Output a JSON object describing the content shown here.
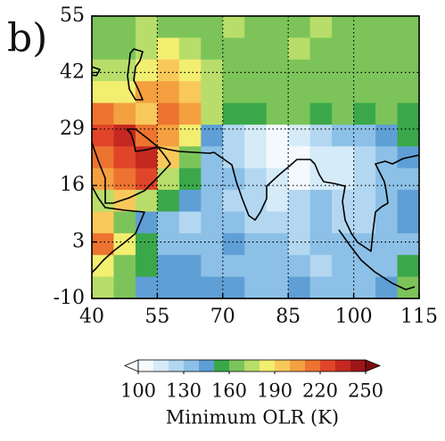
{
  "chart_data": {
    "type": "heatmap",
    "panel_label": "b)",
    "x": [
      40,
      45,
      50,
      55,
      60,
      65,
      70,
      75,
      80,
      85,
      90,
      95,
      100,
      105,
      110
    ],
    "y": [
      55,
      50,
      45,
      40,
      35,
      30,
      25,
      20,
      15,
      10,
      5,
      0,
      -5
    ],
    "values": [
      [
        165,
        160,
        170,
        165,
        160,
        165,
        170,
        165,
        160,
        165,
        170,
        165,
        160,
        165,
        160
      ],
      [
        160,
        165,
        175,
        180,
        170,
        165,
        160,
        160,
        165,
        170,
        160,
        165,
        165,
        160,
        165
      ],
      [
        175,
        170,
        185,
        195,
        185,
        170,
        160,
        165,
        165,
        160,
        160,
        165,
        160,
        165,
        160
      ],
      [
        185,
        180,
        200,
        205,
        190,
        175,
        165,
        160,
        165,
        165,
        160,
        160,
        165,
        160,
        160
      ],
      [
        215,
        205,
        195,
        210,
        200,
        175,
        155,
        150,
        160,
        160,
        155,
        160,
        155,
        160,
        155
      ],
      [
        225,
        230,
        215,
        200,
        180,
        145,
        120,
        115,
        105,
        110,
        120,
        130,
        135,
        145,
        150
      ],
      [
        215,
        225,
        230,
        195,
        160,
        135,
        125,
        110,
        100,
        105,
        110,
        115,
        125,
        135,
        140
      ],
      [
        200,
        215,
        225,
        170,
        150,
        135,
        130,
        120,
        110,
        105,
        115,
        115,
        120,
        130,
        135
      ],
      [
        175,
        195,
        175,
        150,
        140,
        130,
        125,
        125,
        115,
        120,
        130,
        125,
        120,
        130,
        140
      ],
      [
        190,
        160,
        145,
        135,
        125,
        130,
        135,
        125,
        120,
        125,
        130,
        125,
        125,
        135,
        140
      ],
      [
        210,
        180,
        150,
        135,
        130,
        135,
        140,
        130,
        135,
        125,
        130,
        130,
        130,
        135,
        135
      ],
      [
        185,
        165,
        150,
        140,
        140,
        135,
        135,
        130,
        130,
        130,
        125,
        130,
        130,
        135,
        150
      ],
      [
        170,
        160,
        145,
        145,
        140,
        140,
        140,
        135,
        135,
        140,
        130,
        135,
        130,
        140,
        160
      ]
    ],
    "cell_size": 5,
    "xlim": [
      40,
      115
    ],
    "xticks": [
      40,
      55,
      70,
      85,
      100,
      115
    ],
    "ylim": [
      -10,
      55
    ],
    "yticks": [
      -10,
      3,
      16,
      29,
      42,
      55
    ],
    "grid": true,
    "colorbar": {
      "label": "Minimum OLR (K)",
      "clim": [
        100,
        250
      ],
      "ticks": [
        100,
        130,
        160,
        190,
        220,
        250
      ],
      "under_color": "#ffffff",
      "over_color": "#7a0c10",
      "colors": [
        "#f3f9fd",
        "#d6ebf8",
        "#b3d7f0",
        "#8cc0e6",
        "#5f9fd6",
        "#3aa84a",
        "#7cc45a",
        "#b9dd6a",
        "#f2ee70",
        "#f8c95a",
        "#f4a040",
        "#ec7430",
        "#e0452a",
        "#c42820",
        "#9e1518"
      ]
    }
  }
}
